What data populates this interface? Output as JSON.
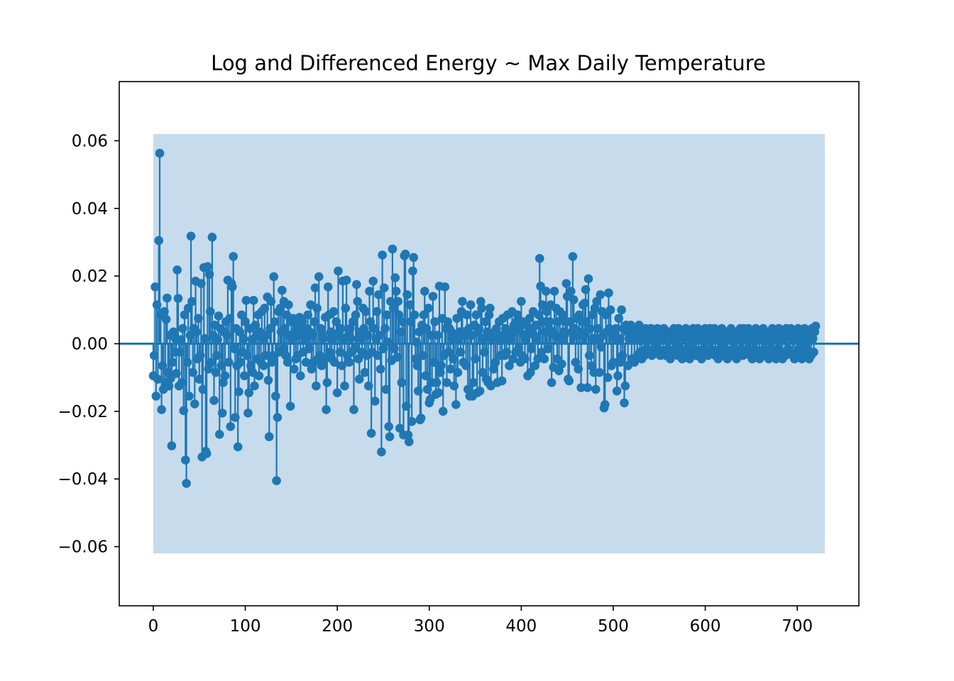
{
  "chart_data": {
    "type": "stem",
    "title": "Log and Differenced Energy ~ Max Daily Temperature",
    "xlabel": "",
    "ylabel": "",
    "xlim": [
      -37,
      767
    ],
    "ylim": [
      -0.0775,
      0.0775
    ],
    "x_ticks": [
      0,
      100,
      200,
      300,
      400,
      500,
      600,
      700
    ],
    "x_tick_labels": [
      "0",
      "100",
      "200",
      "300",
      "400",
      "500",
      "600",
      "700"
    ],
    "y_ticks": [
      -0.06,
      -0.04,
      -0.02,
      0.0,
      0.02,
      0.04,
      0.06
    ],
    "y_tick_labels": [
      "−0.06",
      "−0.04",
      "−0.02",
      "0.00",
      "0.02",
      "0.04",
      "0.06"
    ],
    "confidence_band": {
      "x_start": 0,
      "x_end": 730,
      "lower": -0.062,
      "upper": 0.062,
      "color": "#c6dbec"
    },
    "series_color": "#1f77b4",
    "baseline": 0.0,
    "lags": {
      "start": 0,
      "count": 731
    },
    "values": [
      -0.0095,
      -0.0035,
      0.0168,
      -0.0155,
      0.0115,
      -0.0105,
      0.0305,
      0.0563,
      0.0085,
      -0.0195,
      -0.0065,
      -0.0135,
      0.0095,
      -0.0115,
      0.0072,
      0.0135,
      -0.0085,
      -0.0125,
      0.0025,
      -0.0102,
      -0.0302,
      -0.0055,
      0.0035,
      -0.0025,
      0.0015,
      -0.0088,
      0.0218,
      0.0134,
      -0.0125,
      -0.0025,
      0.0012,
      -0.0115,
      0.0045,
      -0.0198,
      0.0085,
      -0.0344,
      -0.0413,
      -0.0055,
      0.0105,
      -0.0155,
      0.0025,
      0.0318,
      0.0125,
      -0.0085,
      0.0045,
      -0.0178,
      0.0185,
      0.0035,
      -0.0045,
      0.0075,
      -0.0105,
      -0.0035,
      0.0178,
      -0.0335,
      -0.0135,
      0.0225,
      0.0015,
      -0.0318,
      -0.0325,
      0.0228,
      -0.0075,
      0.0205,
      0.0095,
      -0.0055,
      0.0315,
      0.0025,
      -0.0168,
      0.0055,
      -0.0085,
      -0.0035,
      0.0012,
      0.0082,
      -0.0268,
      0.0045,
      -0.0065,
      -0.0205,
      -0.0115,
      0.0035,
      -0.0095,
      0.0065,
      0.0025,
      0.0188,
      -0.0055,
      0.0075,
      -0.0245,
      0.0178,
      0.0168,
      0.0258,
      -0.0015,
      -0.0218,
      0.0045,
      -0.0065,
      -0.0305,
      -0.0142,
      0.0035,
      -0.0055,
      0.0085,
      -0.0025,
      0.0015,
      -0.0095,
      0.0065,
      0.0128,
      -0.0035,
      -0.0205,
      -0.0145,
      0.0045,
      -0.0065,
      0.0012,
      -0.0085,
      0.0128,
      -0.0125,
      0.0055,
      0.0025,
      -0.0045,
      0.0085,
      -0.0095,
      0.0035,
      -0.0055,
      0.0095,
      0.0015,
      -0.0065,
      0.0105,
      -0.0035,
      0.0025,
      0.0138,
      -0.0108,
      -0.0275,
      0.0045,
      0.0125,
      -0.0055,
      -0.0035,
      0.0198,
      0.0065,
      -0.0155,
      -0.0405,
      -0.0218,
      0.0095,
      -0.0025,
      0.0105,
      0.0035,
      0.0158,
      -0.0015,
      0.0125,
      0.0045,
      -0.0035,
      0.0085,
      -0.0055,
      0.0115,
      0.0025,
      -0.0185,
      0.0065,
      0.0015,
      0.0075,
      -0.0075,
      0.0035,
      -0.0045,
      0.0055,
      -0.0035,
      0.0025,
      0.0078,
      -0.0095,
      0.0045,
      0.0065,
      -0.0025,
      0.0035,
      0.0015,
      -0.0055,
      0.0045,
      0.0085,
      -0.0015,
      0.0035,
      0.0115,
      -0.0075,
      0.0025,
      -0.0055,
      0.0065,
      0.0165,
      -0.0125,
      0.0105,
      -0.0045,
      0.0198,
      -0.0035,
      0.0045,
      -0.0065,
      0.0025,
      0.0015,
      -0.0045,
      0.0078,
      -0.0195,
      -0.0115,
      0.0168,
      0.0085,
      -0.0025,
      0.0035,
      -0.0045,
      0.0012,
      0.0095,
      -0.0055,
      0.0025,
      0.0065,
      -0.0145,
      0.0215,
      0.0035,
      -0.0025,
      0.0045,
      -0.0065,
      0.0185,
      0.0015,
      -0.0125,
      0.0105,
      0.0188,
      -0.0035,
      0.0025,
      -0.0055,
      0.0045,
      0.0015,
      -0.0025,
      0.0065,
      -0.0195,
      -0.0015,
      0.0085,
      0.0175,
      0.0125,
      -0.0045,
      -0.0105,
      0.0035,
      0.0015,
      -0.0025,
      0.0105,
      0.0045,
      -0.0085,
      0.0095,
      -0.0035,
      0.0025,
      -0.0125,
      0.0155,
      0.0065,
      -0.0265,
      -0.0025,
      0.0185,
      0.0045,
      -0.017,
      0.0015,
      0.0095,
      -0.0035,
      0.0145,
      0.0025,
      -0.0075,
      -0.032,
      0.0262,
      -0.0015,
      0.0165,
      0.0045,
      -0.0135,
      0.0085,
      0.0005,
      -0.0245,
      -0.0275,
      0.0125,
      -0.005,
      0.028,
      0.0105,
      -0.0015,
      0.0195,
      0.0155,
      -0.004,
      0.0125,
      0.0085,
      -0.025,
      0.0035,
      -0.0115,
      0.0065,
      -0.027,
      0.026,
      0.0265,
      -0.0185,
      0.0145,
      -0.027,
      -0.029,
      0.0115,
      0.0065,
      -0.023,
      0.0215,
      0.0255,
      0.0085,
      -0.0045,
      0.0005,
      -0.0065,
      -0.014,
      0.0035,
      -0.0225,
      -0.022,
      0.0055,
      -0.0035,
      0.0085,
      0.0155,
      -0.0095,
      0.0045,
      -0.0135,
      0.0105,
      -0.0175,
      -0.0165,
      0.0025,
      -0.0115,
      0.014,
      -0.0055,
      0.0065,
      -0.015,
      -0.0115,
      0.0025,
      -0.0145,
      0.017,
      -0.0085,
      -0.0065,
      0.0075,
      -0.02,
      -0.0035,
      0.0168,
      0.0045,
      -0.0115,
      0.0065,
      -0.0025,
      0.0045,
      -0.0075,
      0.0035,
      0.0015,
      -0.0045,
      -0.0125,
      0.0025,
      -0.018,
      0.0075,
      -0.0085,
      0.0015,
      0.0035,
      -0.0025,
      0.0095,
      0.0125,
      -0.0055,
      0.0035,
      0.0025,
      -0.0065,
      0.0085,
      -0.0135,
      0.0045,
      -0.0155,
      0.0115,
      0.0025,
      -0.0155,
      -0.0115,
      0.0055,
      -0.0045,
      0.0085,
      -0.0145,
      0.0035,
      0.0045,
      -0.014,
      0.0125,
      0.0105,
      -0.0085,
      0.0015,
      -0.0025,
      0.0065,
      -0.0105,
      0.0035,
      -0.0115,
      0.0085,
      0.0105,
      -0.0125,
      0.0015,
      0.0025,
      -0.0075,
      0.0035,
      -0.0055,
      0.0045,
      -0.0115,
      0.0015,
      0.0065,
      -0.0035,
      0.0025,
      -0.011,
      0.0075,
      0.0015,
      -0.0035,
      0.0045,
      -0.0025,
      0.0085,
      0.0035,
      -0.0065,
      0.0025,
      0.0015,
      0.0095,
      -0.0045,
      0.0055,
      0.0035,
      -0.0025,
      0.0065,
      0.0085,
      -0.0015,
      0.0045,
      -0.0055,
      0.0125,
      -0.0035,
      0.0065,
      0.0025,
      -0.0045,
      0.0015,
      0.0055,
      -0.0095,
      0.0035,
      0.0075,
      -0.0085,
      -0.0015,
      0.0045,
      0.0095,
      0.0025,
      -0.0065,
      0.0055,
      0.0015,
      -0.0045,
      0.0085,
      0.0252,
      0.017,
      -0.0025,
      0.0115,
      0.0065,
      -0.0045,
      0.0035,
      0.0155,
      0.0095,
      -0.0015,
      0.0045,
      0.0065,
      0.0115,
      -0.0115,
      0.0035,
      -0.007,
      0.0155,
      0.0025,
      0.0105,
      -0.0045,
      0.0065,
      -0.008,
      0.0095,
      0.0015,
      -0.006,
      0.0085,
      0.0035,
      0.0025,
      0.0065,
      0.0178,
      0.014,
      -0.0105,
      -0.011,
      0.0065,
      0.0155,
      0.0035,
      0.0258,
      0.013,
      0.0045,
      -0.0055,
      0.0075,
      0.0025,
      -0.0075,
      0.0085,
      0.0035,
      -0.013,
      0.0065,
      0.0115,
      0.0025,
      0.012,
      0.016,
      0.0065,
      -0.013,
      0.0192,
      -0.0035,
      0.0045,
      -0.0065,
      0.0085,
      0.0015,
      -0.0085,
      0.0105,
      -0.0135,
      0.0125,
      0.0045,
      0.0015,
      -0.0085,
      0.0145,
      -0.001,
      0.0095,
      0.0025,
      -0.019,
      -0.018,
      0.0085,
      0.0035,
      -0.01,
      0.015,
      0.0045,
      0.01,
      -0.0065,
      0.0025,
      -0.0055,
      0.0035,
      0.0015,
      0.0045,
      -0.014,
      -0.0095,
      0.0075,
      0.0015,
      -0.0055,
      0.01,
      -0.0035,
      0.0045,
      -0.0175,
      -0.0125,
      0.0055,
      0.0035,
      -0.0065,
      0.0015,
      0.003,
      0.0055,
      -0.0045,
      0.0035,
      0.0015,
      -0.0055,
      0.0045,
      0.0025,
      -0.0035,
      0.0015,
      0.0055,
      -0.0025,
      0.0035,
      -0.0045,
      0.0025,
      0.0015,
      -0.0035,
      0.0045,
      -0.0015,
      0.0025,
      0.0035,
      -0.0025,
      0.0015,
      0.0045,
      -0.0035,
      0.0025,
      -0.0015,
      0.0035,
      0.0015,
      -0.0025,
      0.0045,
      -0.0015,
      0.0025,
      -0.0035,
      0.0015,
      0.0035,
      -0.0025,
      0.0045,
      0.0015,
      -0.0035,
      0.0025,
      -0.0015,
      0.0035,
      0.0025,
      -0.0045,
      0.0015,
      0.0035,
      -0.0025,
      0.0045,
      -0.0015,
      0.0025,
      0.0015,
      -0.0035,
      0.0045,
      0.0025,
      -0.0015,
      0.0035,
      -0.0045,
      0.0015,
      0.0025,
      -0.0035,
      0.0045,
      -0.0015,
      0.0035,
      0.0025,
      -0.0045,
      0.0015,
      -0.0025,
      0.0035,
      0.0045,
      -0.0015,
      0.0025,
      -0.0035,
      0.0015,
      0.0045,
      -0.0025,
      0.0035,
      0.0015,
      -0.0045,
      0.0025,
      -0.0015,
      0.0035,
      0.0045,
      -0.0025,
      0.0015,
      -0.0035,
      0.0025,
      0.0045,
      -0.0015,
      0.0035,
      -0.0025,
      0.0015,
      0.0045,
      -0.0035,
      0.0025,
      0.0015,
      -0.0045,
      0.0035,
      -0.0015,
      0.0025,
      0.0045,
      -0.0035,
      0.0015,
      0.0025,
      -0.0015,
      0.0035,
      -0.0045,
      0.0025,
      0.0015,
      -0.0035,
      0.0045,
      -0.0025,
      0.0015,
      0.0035,
      -0.0015,
      0.0025,
      -0.0045,
      0.0035,
      0.0015,
      -0.0025,
      0.0045,
      -0.0015,
      0.0025,
      -0.0035,
      0.0045,
      0.0015,
      -0.0025,
      0.0035,
      -0.0015,
      0.0045,
      0.0025,
      -0.0035,
      0.0015,
      -0.0045,
      0.0025,
      0.0035,
      -0.0015,
      0.0045,
      -0.0025,
      0.0015,
      0.0035,
      -0.0045,
      0.0025,
      0.0015,
      -0.0035,
      0.0045,
      -0.0015,
      0.0025,
      0.0035,
      -0.0025,
      0.0015,
      -0.0045,
      0.0035,
      0.0025,
      -0.0015,
      0.0045,
      -0.0035,
      0.0015,
      0.0025,
      -0.0045,
      0.0035,
      -0.0015,
      0.0045,
      0.0015,
      -0.0025,
      0.0035,
      -0.0045,
      0.0025,
      0.0015,
      -0.0035,
      0.0045,
      0.0025,
      -0.0015,
      0.0035,
      -0.0025,
      0.0045,
      0.0015,
      -0.0035,
      0.0025,
      -0.0045,
      0.0035,
      0.0015,
      -0.0025,
      0.0045,
      -0.0015,
      0.0035,
      0.0025,
      -0.0045,
      0.0015,
      -0.0035,
      0.0045,
      0.0025,
      -0.0015,
      0.0035,
      0.0015,
      -0.0045,
      0.0025,
      -0.0035,
      0.0045,
      0.0015,
      -0.0025,
      0.0035,
      0.0052
    ]
  }
}
